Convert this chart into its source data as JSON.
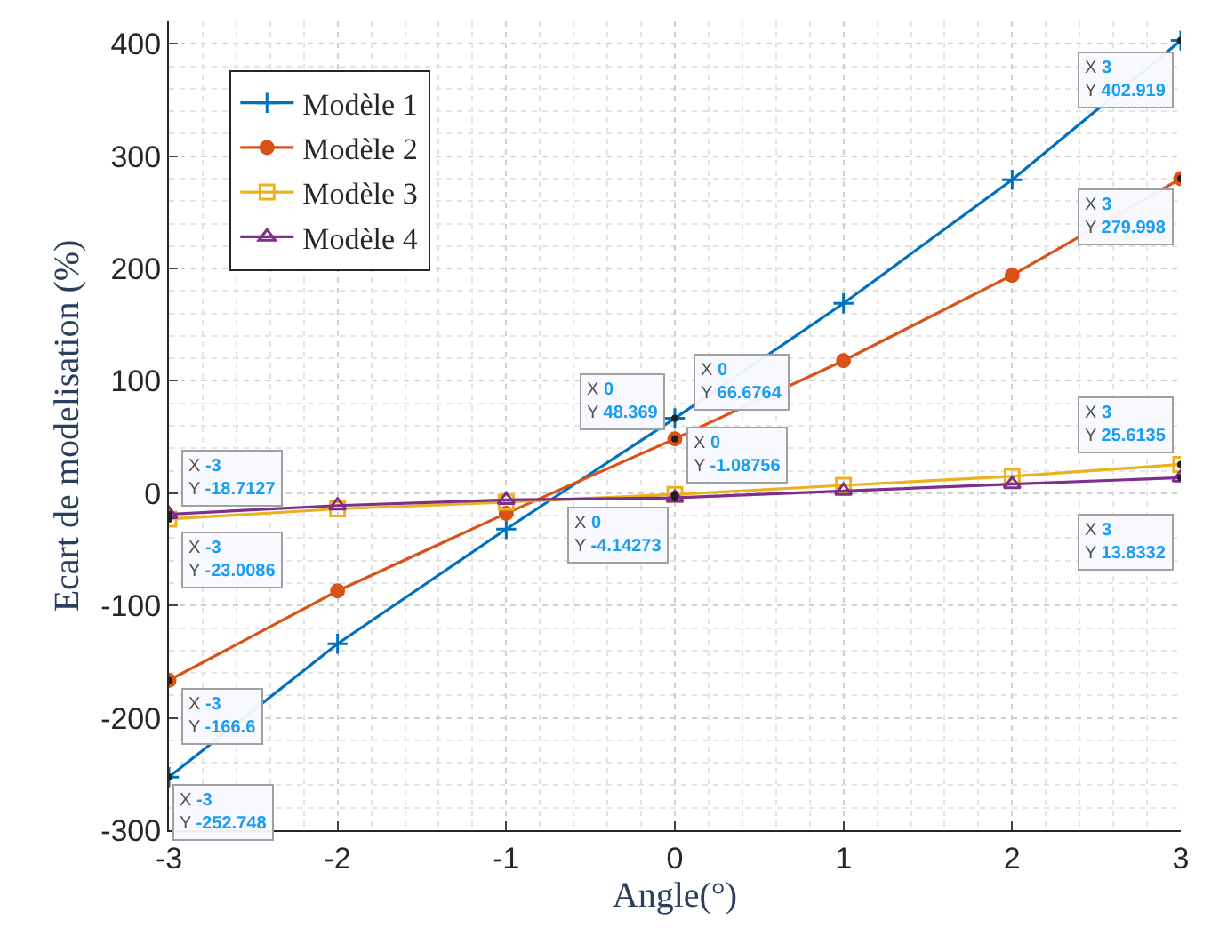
{
  "chart_data": {
    "type": "line",
    "xlabel": "Angle(°)",
    "ylabel": "Ecart de modelisation (%)",
    "x": [
      -3,
      -2,
      -1,
      0,
      1,
      2,
      3
    ],
    "series": [
      {
        "name": "Modèle 1",
        "color": "#0072bd",
        "marker": "cross",
        "values": [
          -252.748,
          -134,
          -32,
          66.6764,
          169,
          279,
          402.919
        ]
      },
      {
        "name": "Modèle 2",
        "color": "#d95319",
        "marker": "circle",
        "values": [
          -166.6,
          -87,
          -18,
          48.369,
          118,
          194,
          279.998
        ]
      },
      {
        "name": "Modèle 3",
        "color": "#edb120",
        "marker": "square",
        "values": [
          -23.0086,
          -14,
          -8,
          -1.08756,
          7,
          15,
          25.6135
        ]
      },
      {
        "name": "Modèle 4",
        "color": "#7e2f8e",
        "marker": "triangle",
        "values": [
          -18.7127,
          -11,
          -6,
          -4.14273,
          2,
          8,
          13.8332
        ]
      }
    ],
    "xlim": [
      -3,
      3
    ],
    "xticks": [
      -3,
      -2,
      -1,
      0,
      1,
      2,
      3
    ],
    "ylim": [
      -300,
      420
    ],
    "yticks": [
      -300,
      -200,
      -100,
      0,
      100,
      200,
      300,
      400
    ],
    "grid": true,
    "legend": "top left",
    "annotations": [
      {
        "text": "X 3\nY 402.919",
        "x": 3,
        "y": 402.919
      },
      {
        "text": "X 3\nY 279.998",
        "x": 3,
        "y": 279.998
      },
      {
        "text": "X 3\nY 25.6135",
        "x": 3,
        "y": 25.6135
      },
      {
        "text": "X 3\nY 13.8332",
        "x": 3,
        "y": 13.8332
      },
      {
        "text": "X 0\nY 66.6764",
        "x": 0,
        "y": 66.6764
      },
      {
        "text": "X 0\nY 48.369",
        "x": 0,
        "y": 48.369
      },
      {
        "text": "X 0\nY -1.08756",
        "x": 0,
        "y": -1.08756
      },
      {
        "text": "X 0\nY -4.14273",
        "x": 0,
        "y": -4.14273
      },
      {
        "text": "X -3\nY -18.7127",
        "x": -3,
        "y": -18.7127
      },
      {
        "text": "X -3\nY -23.0086",
        "x": -3,
        "y": -23.0086
      },
      {
        "text": "X -3\nY -166.6",
        "x": -3,
        "y": -166.6
      },
      {
        "text": "X -3\nY -252.748",
        "x": -3,
        "y": -252.748
      }
    ]
  }
}
